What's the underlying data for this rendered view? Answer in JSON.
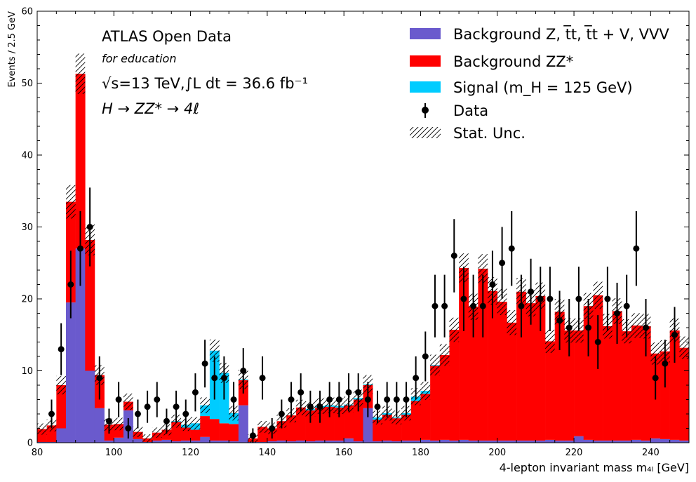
{
  "chart_data": {
    "type": "bar",
    "subtype": "stacked-histogram",
    "xlabel": "4-lepton invariant mass m₄ₗ [GeV]",
    "ylabel": "Events / 2.5 GeV",
    "xlim": [
      80,
      250
    ],
    "ylim": [
      0,
      60
    ],
    "bin_width": 2.5,
    "x_ticks": [
      80,
      100,
      120,
      140,
      160,
      180,
      200,
      220,
      240
    ],
    "y_ticks": [
      0,
      10,
      20,
      30,
      40,
      50,
      60
    ],
    "annotations": [
      "ATLAS Open Data",
      "for education",
      "√s=13 TeV,∫L dt = 36.6 fb⁻¹",
      "H → ZZ* → 4ℓ"
    ],
    "legend": {
      "placement": "top-right",
      "entries": [
        {
          "label": "Background Z, t̅t, t̅t + V, VVV",
          "kind": "bar",
          "color": "#6a5acd"
        },
        {
          "label": "Background ZZ*",
          "kind": "bar",
          "color": "#ff0000"
        },
        {
          "label": "Signal (m_H = 125 GeV)",
          "kind": "bar",
          "color": "#00ccff"
        },
        {
          "label": "Data",
          "kind": "errorbar",
          "color": "#000000"
        },
        {
          "label": "Stat. Unc.",
          "kind": "hatch",
          "color": "#000000"
        }
      ]
    },
    "bin_edges_start": 80,
    "series": [
      {
        "name": "Background Z, t̅t, t̅t + V, VVV",
        "color": "#6a5acd",
        "values": [
          0.1,
          0.1,
          2.0,
          19.5,
          27.0,
          10.0,
          4.8,
          0.3,
          0.7,
          4.5,
          0.5,
          0.1,
          0.3,
          0.4,
          0.2,
          0.3,
          0.3,
          0.8,
          0.3,
          0.3,
          0.2,
          5.2,
          0.1,
          0.1,
          0.2,
          0.3,
          0.2,
          0.3,
          0.2,
          0.3,
          0.3,
          0.3,
          0.6,
          0.2,
          4.8,
          0.2,
          0.3,
          0.2,
          0.3,
          0.3,
          0.4,
          0.3,
          0.4,
          0.3,
          0.4,
          0.3,
          0.3,
          0.3,
          0.3,
          0.3,
          0.3,
          0.3,
          0.3,
          0.4,
          0.3,
          0.3,
          0.9,
          0.4,
          0.3,
          0.3,
          0.3,
          0.3,
          0.4,
          0.3,
          0.6,
          0.5,
          0.4,
          0.3
        ]
      },
      {
        "name": "Background ZZ*",
        "color": "#ff0000",
        "values": [
          1.8,
          2.3,
          6.0,
          14.0,
          24.3,
          18.2,
          4.6,
          2.2,
          1.9,
          1.2,
          1.0,
          0.5,
          1.1,
          1.4,
          2.7,
          1.8,
          1.5,
          2.9,
          3.0,
          2.4,
          2.4,
          3.5,
          0.5,
          2.1,
          1.8,
          2.7,
          3.6,
          4.6,
          4.3,
          4.6,
          4.7,
          4.6,
          4.6,
          5.8,
          3.2,
          3.0,
          3.6,
          3.2,
          3.6,
          5.5,
          6.4,
          10.4,
          11.8,
          15.4,
          23.9,
          18.6,
          23.9,
          20.8,
          19.3,
          16.4,
          20.7,
          19.1,
          20.1,
          13.7,
          17.9,
          15.3,
          14.7,
          18.6,
          20.2,
          15.9,
          18.0,
          15.2,
          15.9,
          15.9,
          11.8,
          12.2,
          15.2,
          12.9
        ]
      },
      {
        "name": "Signal (m_H = 125 GeV)",
        "color": "#00ccff",
        "values": [
          0,
          0,
          0,
          0,
          0,
          0,
          0,
          0,
          0,
          0,
          0,
          0,
          0,
          0,
          0.1,
          0.4,
          0.9,
          1.5,
          9.5,
          7.0,
          1.5,
          0.1,
          0,
          0,
          0,
          0,
          0,
          0,
          0.2,
          0.2,
          0.2,
          0.2,
          0.1,
          0.2,
          0.1,
          0.3,
          0.2,
          0.1,
          0.2,
          0.6,
          0.4,
          0.1,
          0,
          0,
          0,
          0,
          0,
          0,
          0,
          0,
          0,
          0,
          0,
          0,
          0,
          0,
          0,
          0,
          0,
          0,
          0,
          0,
          0,
          0,
          0,
          0,
          0,
          0
        ]
      },
      {
        "name": "Data",
        "color": "#000000",
        "values": [
          0,
          4,
          13,
          22,
          27,
          30,
          9,
          3,
          6,
          2,
          4,
          5,
          6,
          3,
          5,
          4,
          7,
          11,
          9,
          9,
          6,
          10,
          1,
          9,
          2,
          4,
          6,
          7,
          5,
          5,
          6,
          6,
          7,
          7,
          6,
          5,
          6,
          6,
          6,
          9,
          12,
          19,
          19,
          26,
          20,
          19,
          19,
          22,
          25,
          27,
          19,
          21,
          20,
          20,
          17,
          16,
          20,
          16,
          14,
          20,
          18,
          19,
          27,
          16,
          9,
          11,
          15,
          0
        ]
      }
    ]
  }
}
